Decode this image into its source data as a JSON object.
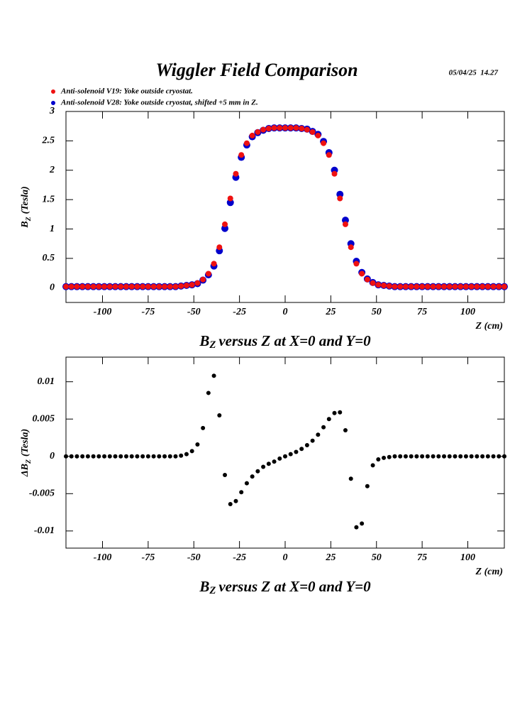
{
  "chart_data": [
    {
      "type": "scatter",
      "title": "Wiggler Field Comparison",
      "timestamp": "05/04/25  14.27",
      "ylabel": [
        "B",
        "Z",
        "(Tesla)"
      ],
      "xlabel": "Z (cm)",
      "caption": [
        "B",
        "Z",
        "versus Z at X=0 and Y=0"
      ],
      "xlim": [
        -120,
        120
      ],
      "ylim": [
        -0.25,
        3
      ],
      "xticks": [
        -100,
        -75,
        -50,
        -25,
        0,
        25,
        50,
        75,
        100
      ],
      "yticks": [
        0,
        0.5,
        1,
        1.5,
        2,
        2.5,
        3
      ],
      "legend": "top-left",
      "x": [
        -120,
        -117,
        -114,
        -111,
        -108,
        -105,
        -102,
        -99,
        -96,
        -93,
        -90,
        -87,
        -84,
        -81,
        -78,
        -75,
        -72,
        -69,
        -66,
        -63,
        -60,
        -57,
        -54,
        -51,
        -48,
        -45,
        -42,
        -39,
        -36,
        -33,
        -30,
        -27,
        -24,
        -21,
        -18,
        -15,
        -12,
        -9,
        -6,
        -3,
        0,
        3,
        6,
        9,
        12,
        15,
        18,
        21,
        24,
        27,
        30,
        33,
        36,
        39,
        42,
        45,
        48,
        51,
        54,
        57,
        60,
        63,
        66,
        69,
        72,
        75,
        78,
        81,
        84,
        87,
        90,
        93,
        96,
        99,
        102,
        105,
        108,
        111,
        114,
        117,
        120
      ],
      "series": [
        {
          "name": "Anti-solenoid V28: Yoke outside cryostat, shifted +5 mm in Z.",
          "color": "#0000cc",
          "values": [
            0.02,
            0.02,
            0.02,
            0.02,
            0.02,
            0.02,
            0.02,
            0.02,
            0.02,
            0.02,
            0.02,
            0.02,
            0.02,
            0.02,
            0.02,
            0.02,
            0.02,
            0.02,
            0.02,
            0.02,
            0.02,
            0.03,
            0.04,
            0.05,
            0.07,
            0.13,
            0.22,
            0.37,
            0.63,
            1.01,
            1.45,
            1.88,
            2.22,
            2.43,
            2.57,
            2.64,
            2.68,
            2.71,
            2.72,
            2.72,
            2.72,
            2.72,
            2.72,
            2.71,
            2.7,
            2.66,
            2.61,
            2.49,
            2.3,
            2.0,
            1.59,
            1.15,
            0.75,
            0.45,
            0.26,
            0.15,
            0.09,
            0.05,
            0.04,
            0.03,
            0.02,
            0.02,
            0.02,
            0.02,
            0.02,
            0.02,
            0.02,
            0.02,
            0.02,
            0.02,
            0.02,
            0.02,
            0.02,
            0.02,
            0.02,
            0.02,
            0.02,
            0.02,
            0.02,
            0.02,
            0.02
          ]
        },
        {
          "name": "Anti-solenoid V19: Yoke outside cryostat.",
          "color": "#ee1111",
          "values": [
            0.02,
            0.02,
            0.02,
            0.02,
            0.02,
            0.02,
            0.02,
            0.02,
            0.02,
            0.02,
            0.02,
            0.02,
            0.02,
            0.02,
            0.02,
            0.02,
            0.02,
            0.02,
            0.02,
            0.02,
            0.02,
            0.03,
            0.04,
            0.05,
            0.08,
            0.14,
            0.24,
            0.41,
            0.69,
            1.08,
            1.52,
            1.94,
            2.26,
            2.46,
            2.59,
            2.65,
            2.69,
            2.71,
            2.72,
            2.72,
            2.72,
            2.72,
            2.72,
            2.71,
            2.69,
            2.65,
            2.59,
            2.46,
            2.26,
            1.94,
            1.52,
            1.08,
            0.69,
            0.41,
            0.24,
            0.14,
            0.08,
            0.05,
            0.04,
            0.03,
            0.02,
            0.02,
            0.02,
            0.02,
            0.02,
            0.02,
            0.02,
            0.02,
            0.02,
            0.02,
            0.02,
            0.02,
            0.02,
            0.02,
            0.02,
            0.02,
            0.02,
            0.02,
            0.02,
            0.02,
            0.02
          ]
        }
      ]
    },
    {
      "type": "scatter",
      "ylabel": [
        "ΔB",
        "Z",
        "(Tesla)"
      ],
      "xlabel": "Z (cm)",
      "caption": [
        "B",
        "Z",
        "versus Z at X=0 and Y=0"
      ],
      "xlim": [
        -120,
        120
      ],
      "ylim": [
        -0.0123,
        0.0133
      ],
      "xticks": [
        -100,
        -75,
        -50,
        -25,
        0,
        25,
        50,
        75,
        100
      ],
      "yticks": [
        -0.01,
        -0.005,
        0,
        0.005,
        0.01
      ],
      "x": [
        -120,
        -117,
        -114,
        -111,
        -108,
        -105,
        -102,
        -99,
        -96,
        -93,
        -90,
        -87,
        -84,
        -81,
        -78,
        -75,
        -72,
        -69,
        -66,
        -63,
        -60,
        -57,
        -54,
        -51,
        -48,
        -45,
        -42,
        -39,
        -36,
        -33,
        -30,
        -27,
        -24,
        -21,
        -18,
        -15,
        -12,
        -9,
        -6,
        -3,
        0,
        3,
        6,
        9,
        12,
        15,
        18,
        21,
        24,
        27,
        30,
        33,
        36,
        39,
        42,
        45,
        48,
        51,
        54,
        57,
        60,
        63,
        66,
        69,
        72,
        75,
        78,
        81,
        84,
        87,
        90,
        93,
        96,
        99,
        102,
        105,
        108,
        111,
        114,
        117,
        120
      ],
      "color": "#000000",
      "values": [
        0,
        0,
        0,
        0,
        0,
        0,
        0,
        0,
        0,
        0,
        0,
        0,
        0,
        0,
        0,
        0,
        0,
        0,
        0,
        0,
        0,
        0.0001,
        0.0003,
        0.0007,
        0.0016,
        0.0038,
        0.0085,
        0.0108,
        0.0055,
        -0.0025,
        -0.0064,
        -0.006,
        -0.0048,
        -0.0036,
        -0.0027,
        -0.002,
        -0.0014,
        -0.001,
        -0.0007,
        -0.0003,
        0,
        0.0003,
        0.0006,
        0.001,
        0.0015,
        0.0021,
        0.0029,
        0.0039,
        0.005,
        0.0058,
        0.0059,
        0.0035,
        -0.003,
        -0.0095,
        -0.009,
        -0.004,
        -0.0012,
        -0.0004,
        -0.0002,
        -0.0001,
        0,
        0,
        0,
        0,
        0,
        0,
        0,
        0,
        0,
        0,
        0,
        0,
        0,
        0,
        0,
        0,
        0,
        0,
        0,
        0,
        0
      ]
    }
  ]
}
